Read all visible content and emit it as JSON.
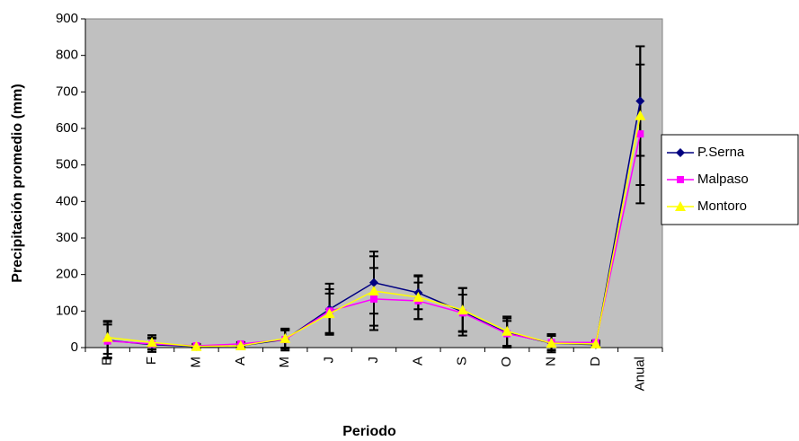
{
  "chart_data": {
    "type": "line",
    "x_label": "Periodo",
    "y_label": "Precipitación promedio (mm)",
    "categories": [
      "E",
      "F",
      "M",
      "A",
      "M",
      "J",
      "J",
      "A",
      "S",
      "O",
      "N",
      "D",
      "Anual"
    ],
    "series": [
      {
        "name": "P.Serna",
        "color": "#000080",
        "marker": "diamond",
        "values": [
          20,
          8,
          3,
          5,
          22,
          105,
          178,
          150,
          98,
          40,
          12,
          8,
          675
        ],
        "errors": [
          50,
          20,
          5,
          5,
          30,
          70,
          85,
          45,
          65,
          40,
          25,
          5,
          150
        ]
      },
      {
        "name": "Malpaso",
        "color": "#ff00ff",
        "marker": "square",
        "values": [
          18,
          10,
          5,
          10,
          22,
          100,
          133,
          128,
          95,
          38,
          14,
          14,
          585
        ],
        "errors": [
          45,
          15,
          5,
          5,
          25,
          60,
          85,
          50,
          50,
          35,
          20,
          5,
          190
        ]
      },
      {
        "name": "Montoro",
        "color": "#ffff00",
        "marker": "triangle",
        "values": [
          28,
          14,
          3,
          5,
          25,
          93,
          155,
          138,
          103,
          45,
          12,
          10,
          635
        ],
        "errors": [
          45,
          20,
          5,
          5,
          25,
          55,
          95,
          60,
          60,
          40,
          20,
          5,
          190
        ]
      }
    ],
    "ylim": [
      0,
      900
    ],
    "yticks": [
      0,
      100,
      200,
      300,
      400,
      500,
      600,
      700,
      800,
      900
    ],
    "error_bar_color": "#000000",
    "plot_background": "#c0c0c0",
    "legend": "right"
  }
}
